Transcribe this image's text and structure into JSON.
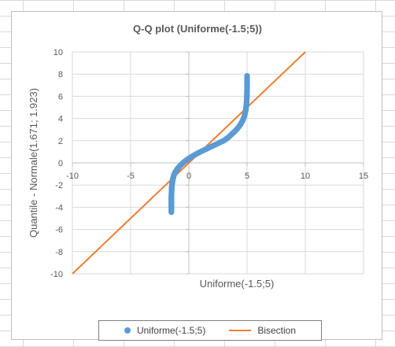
{
  "chart_data": {
    "type": "scatter",
    "title": "Q-Q plot (Uniforme(-1.5;5))",
    "xlabel": "Uniforme(-1.5;5)",
    "ylabel": "Quantile - Normale(1.671; 1.923)",
    "xlim": [
      -10,
      15
    ],
    "ylim": [
      -10,
      10
    ],
    "xticks": [
      -10,
      -5,
      0,
      5,
      10,
      15
    ],
    "yticks": [
      10,
      8,
      6,
      4,
      2,
      0,
      -2,
      -4,
      -6,
      -8,
      -10
    ],
    "grid": true,
    "legend_position": "bottom",
    "series": [
      {
        "name": "Uniforme(-1.5;5)",
        "kind": "scatter",
        "color": "#5b9bd5",
        "points": [
          [
            -1.5,
            -4.45
          ],
          [
            -1.5,
            -4.0
          ],
          [
            -1.5,
            -3.7
          ],
          [
            -1.5,
            -3.4
          ],
          [
            -1.5,
            -3.1
          ],
          [
            -1.49,
            -2.8
          ],
          [
            -1.48,
            -2.5
          ],
          [
            -1.47,
            -2.25
          ],
          [
            -1.45,
            -2.0
          ],
          [
            -1.42,
            -1.75
          ],
          [
            -1.38,
            -1.5
          ],
          [
            -1.32,
            -1.25
          ],
          [
            -1.25,
            -1.0
          ],
          [
            -1.12,
            -0.75
          ],
          [
            -0.95,
            -0.5
          ],
          [
            -0.75,
            -0.25
          ],
          [
            -0.5,
            0.0
          ],
          [
            -0.2,
            0.25
          ],
          [
            0.15,
            0.5
          ],
          [
            0.55,
            0.75
          ],
          [
            1.0,
            1.0
          ],
          [
            1.5,
            1.25
          ],
          [
            2.0,
            1.5
          ],
          [
            2.5,
            1.75
          ],
          [
            3.0,
            2.0
          ],
          [
            3.4,
            2.3
          ],
          [
            3.75,
            2.65
          ],
          [
            4.1,
            3.0
          ],
          [
            4.4,
            3.4
          ],
          [
            4.62,
            3.8
          ],
          [
            4.78,
            4.25
          ],
          [
            4.88,
            4.7
          ],
          [
            4.93,
            5.1
          ],
          [
            4.96,
            5.5
          ],
          [
            4.98,
            5.9
          ],
          [
            4.99,
            6.3
          ],
          [
            5.0,
            6.7
          ],
          [
            5.0,
            7.1
          ],
          [
            5.0,
            7.4
          ],
          [
            5.0,
            7.85
          ]
        ]
      },
      {
        "name": "Bisection",
        "kind": "line",
        "color": "#ed7d31",
        "points": [
          [
            -10,
            -10
          ],
          [
            10,
            10
          ]
        ]
      }
    ]
  }
}
